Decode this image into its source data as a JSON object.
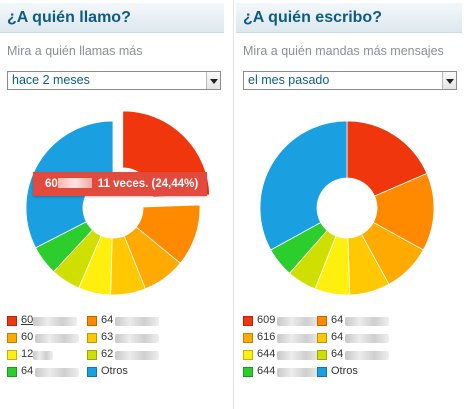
{
  "left_panel": {
    "title": "¿A quién llamo?",
    "subtitle": "Mira a quién llamas más",
    "select_value": "hace 2 meses",
    "tooltip": {
      "prefix": "60",
      "text": "11 veces. (24,44%)"
    },
    "legend": [
      {
        "label": "60",
        "color": "#f0360c"
      },
      {
        "label": "64",
        "color": "#ff8a00"
      },
      {
        "label": "60",
        "color": "#ffaa00"
      },
      {
        "label": "63",
        "color": "#ffc800"
      },
      {
        "label": "12",
        "color": "#ffef0f"
      },
      {
        "label": "62",
        "color": "#cfe000"
      },
      {
        "label": "64",
        "color": "#2ccd2c"
      },
      {
        "label": "Otros",
        "color": "#1a9fe0"
      }
    ]
  },
  "right_panel": {
    "title": "¿A quién escribo?",
    "subtitle": "Mira a quién mandas más mensajes",
    "select_value": "el mes pasado",
    "legend": [
      {
        "label": "609",
        "color": "#f0360c"
      },
      {
        "label": "64",
        "color": "#ff8a00"
      },
      {
        "label": "616",
        "color": "#ffaa00"
      },
      {
        "label": "64",
        "color": "#ffc800"
      },
      {
        "label": "644",
        "color": "#ffef0f"
      },
      {
        "label": "64",
        "color": "#cfe000"
      },
      {
        "label": "644",
        "color": "#2ccd2c"
      },
      {
        "label": "Otros",
        "color": "#1a9fe0"
      }
    ]
  },
  "chart_data": [
    {
      "type": "pie",
      "title": "¿A quién llamo?",
      "categories": [
        "60",
        "64",
        "60",
        "63",
        "12",
        "62",
        "64",
        "Otros"
      ],
      "values": [
        24.44,
        11.5,
        8.0,
        6.5,
        6.0,
        5.5,
        5.5,
        32.56
      ],
      "exploded_index": 0
    },
    {
      "type": "pie",
      "title": "¿A quién escribo?",
      "categories": [
        "609",
        "64",
        "616",
        "64",
        "644",
        "64",
        "644",
        "Otros"
      ],
      "values": [
        18.5,
        14.5,
        9.0,
        7.5,
        6.5,
        5.5,
        5.5,
        33.0
      ],
      "exploded_index": -1
    }
  ]
}
